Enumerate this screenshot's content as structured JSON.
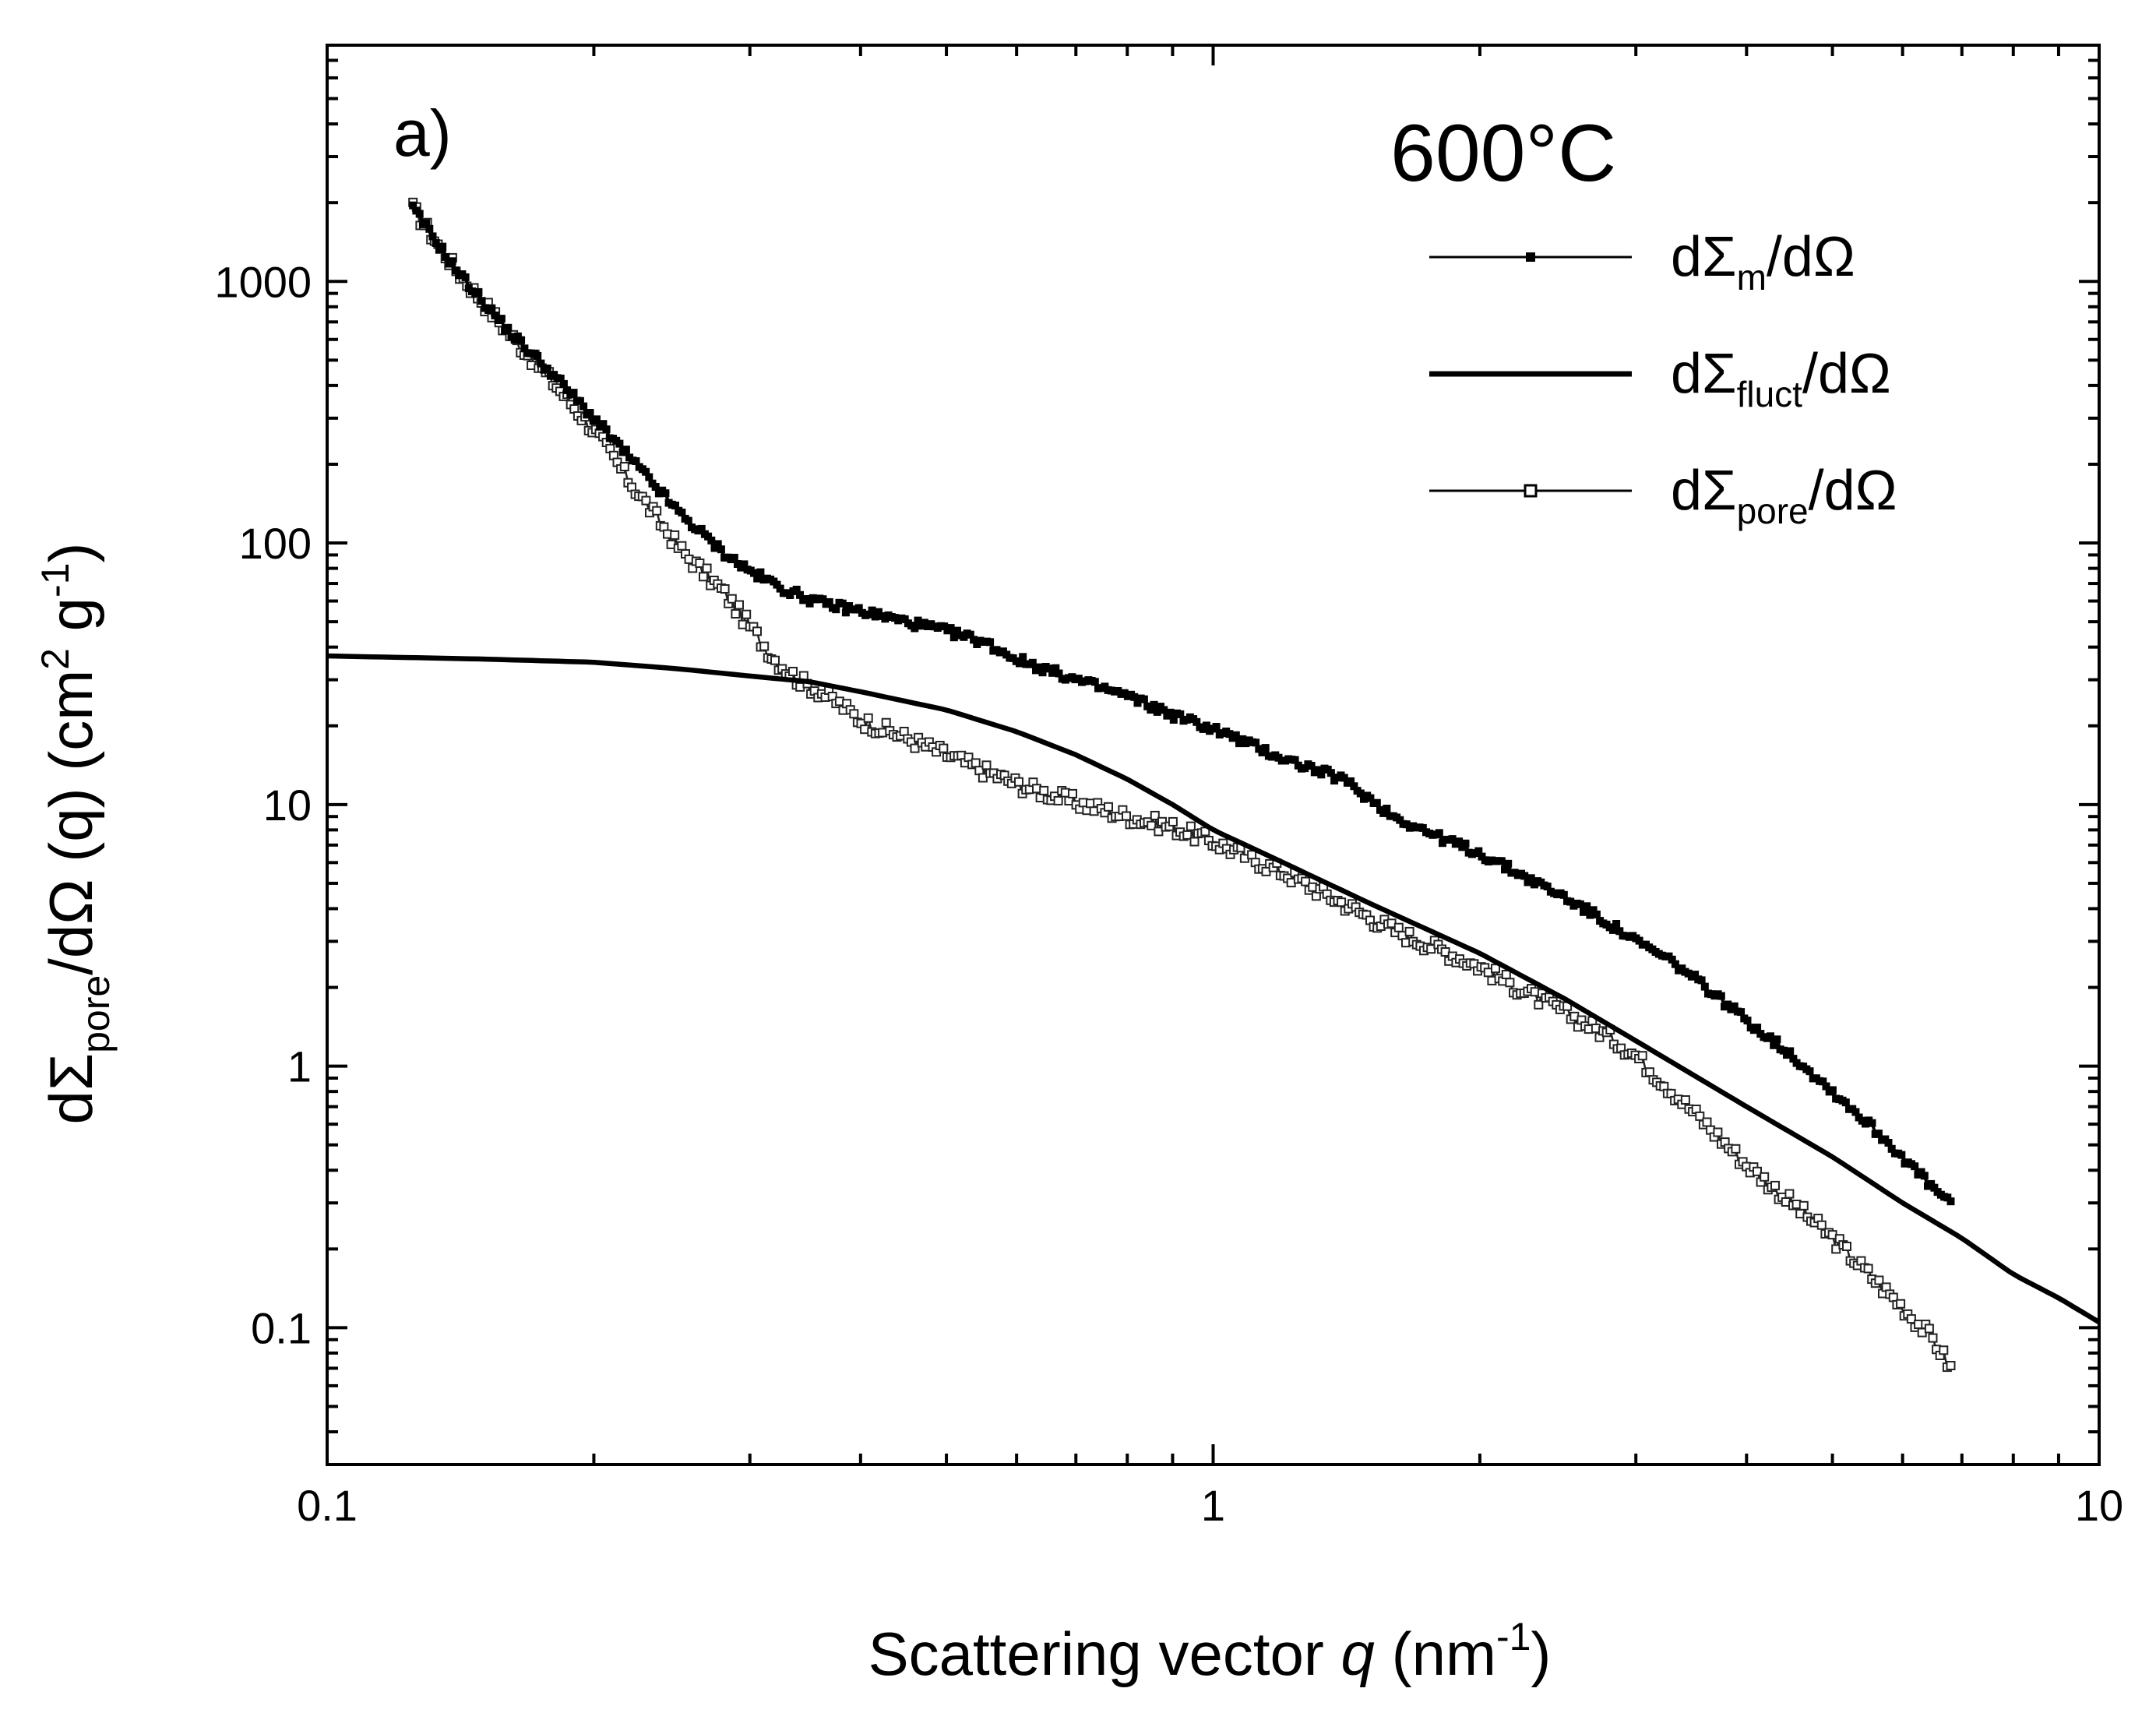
{
  "chart_data": {
    "type": "line",
    "panel_label": "a)",
    "annotation": "600°C",
    "xscale": "log",
    "yscale": "log",
    "xlim": [
      0.1,
      10
    ],
    "ylim": [
      0.03,
      8000
    ],
    "xlabel": {
      "prefix": "Scattering vector ",
      "italic": "q",
      "unit_pre": " (nm",
      "unit_sup": "-1",
      "unit_post": ")"
    },
    "ylabel": {
      "d": "d",
      "sigma": "Σ",
      "sub": "pore",
      "mid": "/dΩ (q) (cm",
      "sup1": "2",
      "mid2": " g",
      "sup2": "-1",
      "end": ")"
    },
    "x_ticks": [
      {
        "value": 0.1,
        "label": "0.1"
      },
      {
        "value": 1,
        "label": "1"
      },
      {
        "value": 10,
        "label": "10"
      }
    ],
    "y_ticks": [
      {
        "value": 0.1,
        "label": "0.1"
      },
      {
        "value": 1,
        "label": "1"
      },
      {
        "value": 10,
        "label": "10"
      },
      {
        "value": 100,
        "label": "100"
      },
      {
        "value": 1000,
        "label": "1000"
      }
    ],
    "legend": [
      {
        "pre": "dΣ",
        "sub": "m",
        "post": "/dΩ"
      },
      {
        "pre": "dΣ",
        "sub": "fluct",
        "post": "/dΩ"
      },
      {
        "pre": "dΣ",
        "sub": "pore",
        "post": "/dΩ"
      }
    ],
    "series": [
      {
        "name": "dΣm/dΩ",
        "style": "filled-markers",
        "x": [
          0.125,
          0.14,
          0.16,
          0.18,
          0.2,
          0.22,
          0.25,
          0.28,
          0.3,
          0.33,
          0.36,
          0.4,
          0.45,
          0.5,
          0.55,
          0.6,
          0.7,
          0.8,
          0.9,
          1.0,
          1.2,
          1.4,
          1.6,
          1.8,
          2.0,
          2.2,
          2.5,
          2.8,
          3.0,
          3.3,
          3.6,
          4.0,
          4.5,
          5.0,
          5.5,
          6.0,
          6.5,
          6.8
        ],
        "y": [
          1900,
          1100,
          650,
          440,
          300,
          210,
          130,
          92,
          78,
          66,
          59,
          55,
          50,
          46,
          42,
          36,
          30,
          26,
          22,
          19.5,
          15,
          12.5,
          9,
          7.5,
          6.5,
          5.5,
          4.4,
          3.5,
          3.0,
          2.5,
          2.0,
          1.5,
          1.1,
          0.8,
          0.6,
          0.45,
          0.34,
          0.3
        ]
      },
      {
        "name": "dΣfluct/dΩ",
        "style": "thick-line",
        "x": [
          0.1,
          0.15,
          0.2,
          0.25,
          0.3,
          0.35,
          0.4,
          0.5,
          0.6,
          0.7,
          0.8,
          0.9,
          1.0,
          1.2,
          1.5,
          2.0,
          2.5,
          3.0,
          4.0,
          5.0,
          6.0,
          7.0,
          8.0,
          9.0,
          10.0
        ],
        "y": [
          37,
          36,
          35,
          33,
          31,
          29.5,
          27,
          23,
          19,
          15.5,
          12.5,
          10,
          8,
          6,
          4.2,
          2.7,
          1.8,
          1.25,
          0.7,
          0.45,
          0.3,
          0.22,
          0.16,
          0.13,
          0.105
        ]
      },
      {
        "name": "dΣpore/dΩ",
        "style": "open-markers",
        "x": [
          0.125,
          0.14,
          0.16,
          0.18,
          0.2,
          0.22,
          0.25,
          0.28,
          0.3,
          0.32,
          0.34,
          0.36,
          0.38,
          0.4,
          0.45,
          0.5,
          0.55,
          0.6,
          0.65,
          0.7,
          0.8,
          0.9,
          1.0,
          1.2,
          1.4,
          1.6,
          1.8,
          2.0,
          2.2,
          2.5,
          2.8,
          3.0,
          3.3,
          3.6,
          4.0,
          4.5,
          5.0,
          5.5,
          6.0,
          6.5,
          6.8
        ],
        "y": [
          1900,
          1100,
          640,
          410,
          270,
          170,
          95,
          65,
          48,
          36,
          30,
          27,
          24,
          21,
          18,
          15.5,
          13.5,
          12,
          11,
          10.2,
          9,
          8.2,
          7.2,
          5.5,
          4.2,
          3.3,
          2.8,
          2.4,
          2.0,
          1.6,
          1.3,
          1.1,
          0.8,
          0.6,
          0.42,
          0.3,
          0.22,
          0.16,
          0.12,
          0.09,
          0.07
        ]
      }
    ]
  }
}
